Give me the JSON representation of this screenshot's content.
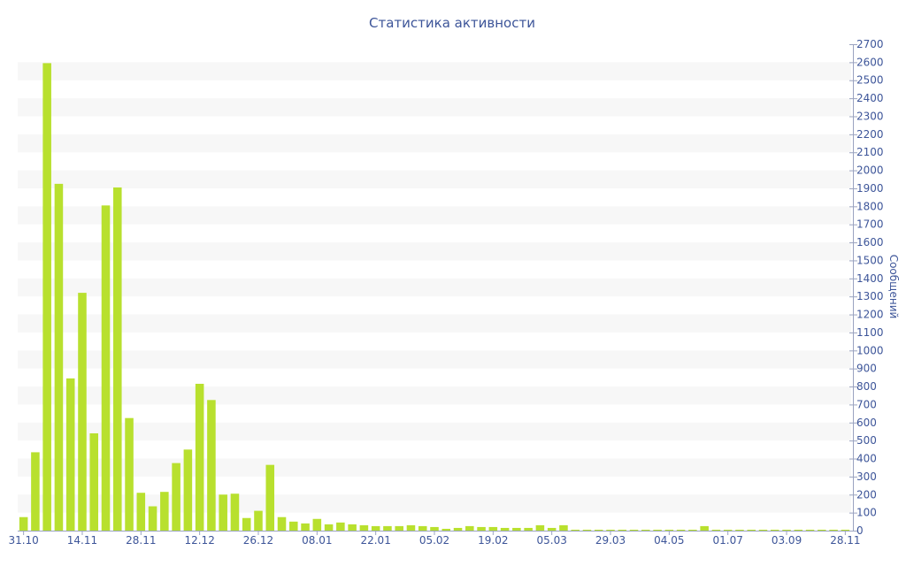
{
  "chart_data": {
    "type": "bar",
    "title": "Статистика активности",
    "xlabel": "",
    "ylabel": "Сообщений",
    "ylim": [
      0,
      2700
    ],
    "y_ticks": [
      0,
      100,
      200,
      300,
      400,
      500,
      600,
      700,
      800,
      900,
      1000,
      1100,
      1200,
      1300,
      1400,
      1500,
      1600,
      1700,
      1800,
      1900,
      2000,
      2100,
      2200,
      2300,
      2400,
      2500,
      2600,
      2700
    ],
    "y_axis_position": "right",
    "x_tick_labels": [
      {
        "label": "31.10",
        "index": 0
      },
      {
        "label": "14.11",
        "index": 5
      },
      {
        "label": "28.11",
        "index": 10
      },
      {
        "label": "12.12",
        "index": 15
      },
      {
        "label": "26.12",
        "index": 20
      },
      {
        "label": "08.01",
        "index": 25
      },
      {
        "label": "22.01",
        "index": 30
      },
      {
        "label": "05.02",
        "index": 35
      },
      {
        "label": "19.02",
        "index": 40
      },
      {
        "label": "05.03",
        "index": 45
      },
      {
        "label": "29.03",
        "index": 50
      },
      {
        "label": "04.05",
        "index": 55
      },
      {
        "label": "01.07",
        "index": 60
      },
      {
        "label": "03.09",
        "index": 65
      },
      {
        "label": "28.11",
        "index": 70
      }
    ],
    "values": [
      75,
      435,
      2595,
      1925,
      845,
      1320,
      540,
      1805,
      1905,
      625,
      210,
      135,
      215,
      375,
      450,
      815,
      725,
      200,
      205,
      70,
      110,
      365,
      75,
      50,
      40,
      65,
      35,
      45,
      35,
      30,
      25,
      25,
      25,
      30,
      25,
      20,
      10,
      15,
      25,
      20,
      20,
      15,
      15,
      15,
      30,
      15,
      30,
      5,
      5,
      5,
      5,
      5,
      5,
      5,
      5,
      5,
      5,
      5,
      25,
      5,
      5,
      5,
      5,
      5,
      5,
      5,
      5,
      5,
      5,
      5,
      5
    ],
    "bar_color": "#b8e02e",
    "band_color": "#f7f7f7",
    "text_color": "#3d5599",
    "grid": "alternating bands",
    "legend": "none"
  }
}
